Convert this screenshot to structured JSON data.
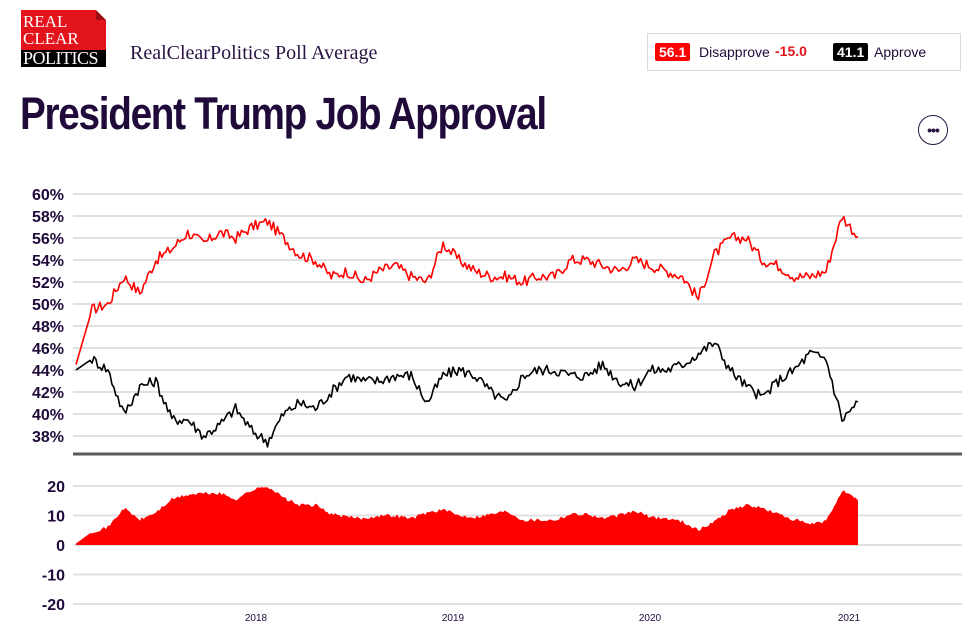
{
  "header": {
    "logo_lines": [
      "REAL",
      "CLEAR",
      "POLITICS"
    ],
    "subtitle": "RealClearPolitics Poll Average",
    "title": "President Trump Job Approval",
    "more_button_label": "•••"
  },
  "legend": {
    "disapprove": {
      "value": "56.1",
      "label": "Disapprove",
      "spread": "-15.0",
      "color": "#ff0000"
    },
    "approve": {
      "value": "41.1",
      "label": "Approve",
      "color": "#000000"
    }
  },
  "chart_data": [
    {
      "type": "line",
      "title": "President Trump Job Approval",
      "ylabel": "",
      "xlabel": "",
      "ylim": [
        37,
        60
      ],
      "yticks": [
        "60%",
        "58%",
        "56%",
        "54%",
        "52%",
        "50%",
        "48%",
        "46%",
        "44%",
        "42%",
        "40%",
        "38%"
      ],
      "ytick_values": [
        60,
        58,
        56,
        54,
        52,
        50,
        48,
        46,
        44,
        42,
        40,
        38
      ],
      "grid": true,
      "x_start": "2017-01",
      "x_end": "2021-01",
      "x_interval": "monthly",
      "xticks": [
        "2018",
        "2019",
        "2020",
        "2021"
      ],
      "series": [
        {
          "name": "Disapprove",
          "color": "#ff0000",
          "values": [
            44.5,
            49.5,
            50.0,
            52.5,
            51.0,
            54.0,
            55.0,
            56.5,
            55.5,
            56.5,
            56.0,
            57.0,
            57.5,
            56.0,
            54.5,
            54.0,
            52.5,
            53.0,
            52.0,
            53.0,
            53.5,
            52.5,
            52.0,
            55.5,
            54.0,
            53.0,
            52.5,
            52.5,
            52.0,
            52.5,
            52.5,
            54.0,
            54.0,
            53.5,
            53.0,
            54.0,
            53.5,
            53.0,
            52.5,
            50.5,
            54.5,
            56.0,
            56.0,
            54.0,
            53.5,
            52.5,
            52.5,
            53.0,
            58.0,
            56.1
          ]
        },
        {
          "name": "Approve",
          "color": "#000000",
          "values": [
            44.0,
            45.0,
            44.0,
            40.0,
            42.5,
            43.0,
            39.5,
            39.5,
            38.0,
            39.0,
            40.5,
            38.5,
            37.5,
            40.0,
            41.0,
            40.5,
            42.0,
            43.5,
            43.0,
            43.0,
            43.5,
            43.5,
            41.0,
            43.5,
            44.0,
            43.5,
            42.0,
            41.0,
            43.5,
            44.0,
            44.0,
            43.5,
            43.5,
            44.5,
            43.0,
            42.5,
            44.0,
            44.0,
            44.5,
            45.5,
            46.5,
            44.0,
            42.5,
            41.5,
            43.0,
            44.0,
            45.5,
            45.0,
            39.5,
            41.1
          ]
        }
      ]
    },
    {
      "type": "area",
      "title": "Spread (Approve − Disapprove, shown as Disapprove lead)",
      "ylim": [
        -20,
        20
      ],
      "yticks": [
        "20",
        "10",
        "0",
        "-10",
        "-20"
      ],
      "ytick_values": [
        20,
        10,
        0,
        -10,
        -20
      ],
      "grid": true,
      "color": "#ff0000",
      "xticks": [
        "2018",
        "2019",
        "2020",
        "2021"
      ],
      "x_start": "2017-01",
      "x_end": "2021-01",
      "x_interval": "monthly",
      "values": [
        0.5,
        4.5,
        6.0,
        12.5,
        8.5,
        11.0,
        15.5,
        17.0,
        17.5,
        17.5,
        15.5,
        18.5,
        20.0,
        16.0,
        13.5,
        13.5,
        10.5,
        9.5,
        9.0,
        10.0,
        10.0,
        9.0,
        11.0,
        12.0,
        10.0,
        9.5,
        10.5,
        11.5,
        8.5,
        8.5,
        8.5,
        10.5,
        10.5,
        9.0,
        10.0,
        11.5,
        9.5,
        9.0,
        8.0,
        5.0,
        8.0,
        12.0,
        13.5,
        12.5,
        10.5,
        8.5,
        7.0,
        8.0,
        18.5,
        15.0
      ]
    }
  ]
}
